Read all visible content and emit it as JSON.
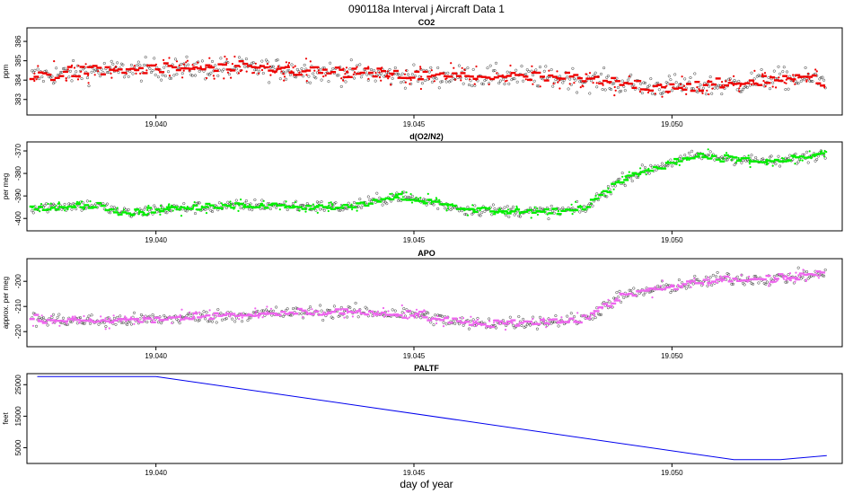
{
  "figure": {
    "title": "090118a   Interval j Aircraft Data 1",
    "xlabel": "day of year"
  },
  "chart_data": [
    {
      "type": "scatter",
      "title": "CO2",
      "ylabel": "ppm",
      "color": "#ee0000",
      "xlim": [
        19.0375,
        19.0533
      ],
      "ylim": [
        382.2,
        386.7
      ],
      "xticks": [
        "19.040",
        "19.045",
        "19.050"
      ],
      "xtick_values": [
        19.04,
        19.045,
        19.05
      ],
      "yticks": [
        "383",
        "384",
        "385",
        "386"
      ],
      "ytick_values": [
        383,
        384,
        385,
        386
      ],
      "series_profile": {
        "x": [
          19.0376,
          19.039,
          19.0405,
          19.042,
          19.0435,
          19.045,
          19.0465,
          19.048,
          19.0495,
          19.051,
          19.052,
          19.053
        ],
        "y": [
          384.2,
          384.5,
          384.6,
          384.6,
          384.4,
          384.2,
          384.2,
          384.1,
          383.7,
          383.7,
          384.1,
          384.0
        ]
      },
      "noise": 0.55
    },
    {
      "type": "scatter",
      "title": "d(O2/N2)",
      "ylabel": "per meg",
      "color": "#00ee00",
      "xlim": [
        19.0375,
        19.0533
      ],
      "ylim": [
        -405.5,
        -366
      ],
      "xticks": [
        "19.040",
        "19.045",
        "19.050"
      ],
      "xtick_values": [
        19.04,
        19.045,
        19.05
      ],
      "yticks": [
        "-400",
        "-390",
        "-380",
        "-370"
      ],
      "ytick_values": [
        -400,
        -390,
        -380,
        -370
      ],
      "series_profile": {
        "x": [
          19.0376,
          19.0388,
          19.0395,
          19.04,
          19.042,
          19.0437,
          19.0447,
          19.046,
          19.0475,
          19.0483,
          19.049,
          19.0497,
          19.0505,
          19.0515,
          19.052,
          19.053
        ],
        "y": [
          -395,
          -394,
          -398,
          -396,
          -394,
          -395,
          -390,
          -396,
          -397,
          -396,
          -383,
          -377,
          -372,
          -374,
          -375,
          -371
        ]
      },
      "noise": 2.5
    },
    {
      "type": "scatter",
      "title": "APO",
      "ylabel": "approx. per meg",
      "color": "#ee66ee",
      "xlim": [
        19.0375,
        19.0533
      ],
      "ylim": [
        -226,
        -191
      ],
      "xticks": [
        "19.040",
        "19.045",
        "19.050"
      ],
      "xtick_values": [
        19.04,
        19.045,
        19.05
      ],
      "yticks": [
        "-220",
        "-210",
        "-200"
      ],
      "ytick_values": [
        -220,
        -210,
        -200
      ],
      "series_profile": {
        "x": [
          19.0376,
          19.039,
          19.04,
          19.042,
          19.0435,
          19.045,
          19.046,
          19.0475,
          19.0483,
          19.049,
          19.05,
          19.051,
          19.052,
          19.053
        ],
        "y": [
          -215,
          -216,
          -215,
          -213,
          -212,
          -213,
          -217,
          -216,
          -215,
          -206,
          -202,
          -199,
          -199,
          -197
        ]
      },
      "noise": 2.6
    },
    {
      "type": "line",
      "title": "PALTF",
      "ylabel": "feet",
      "color": "#0000ee",
      "xlim": [
        19.0375,
        19.0533
      ],
      "ylim": [
        0,
        28500
      ],
      "xticks": [
        "19.040",
        "19.045",
        "19.050"
      ],
      "xtick_values": [
        19.04,
        19.045,
        19.05
      ],
      "yticks": [
        "5000",
        "15000",
        "25000"
      ],
      "ytick_values": [
        5000,
        15000,
        25000
      ],
      "x": [
        19.0377,
        19.04,
        19.0512,
        19.0521,
        19.053
      ],
      "y": [
        27600,
        27600,
        1200,
        1200,
        2500
      ]
    }
  ]
}
